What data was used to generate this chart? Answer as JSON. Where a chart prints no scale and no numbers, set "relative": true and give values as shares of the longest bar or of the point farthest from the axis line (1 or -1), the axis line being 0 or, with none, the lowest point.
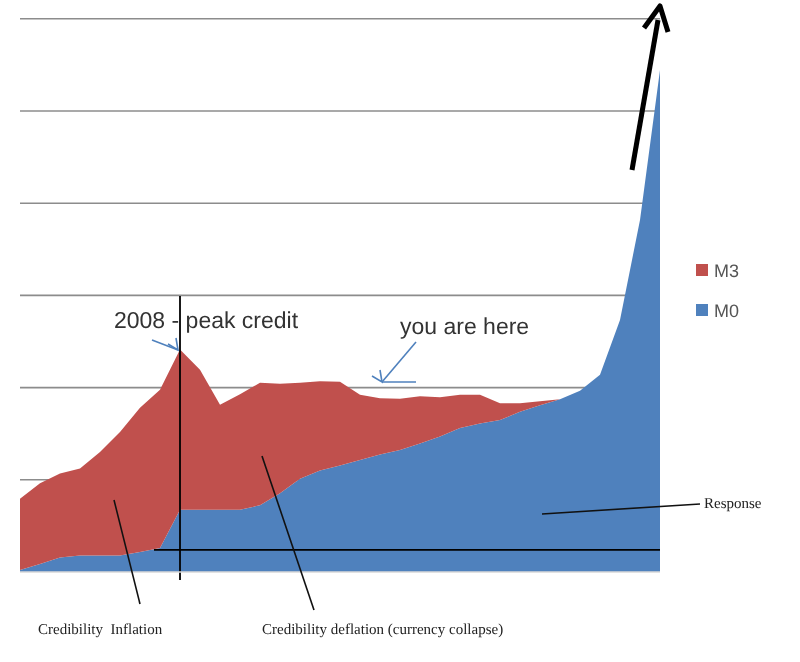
{
  "chart_data": {
    "type": "area",
    "stacked": true,
    "relative": true,
    "grid": "y",
    "legend": "right",
    "categories": [
      null,
      null,
      null,
      null,
      null,
      null,
      null,
      null,
      null,
      null,
      null,
      null,
      null,
      null,
      null,
      null,
      null,
      null,
      null,
      null,
      null,
      null,
      null,
      null,
      null,
      null,
      null,
      null,
      null,
      null,
      null,
      null,
      null
    ],
    "series": [
      {
        "name": "M0",
        "color": "#4f81bd",
        "values": [
          0.004,
          0.016,
          0.029,
          0.033,
          0.033,
          0.033,
          0.04,
          0.048,
          0.124,
          0.124,
          0.124,
          0.124,
          0.133,
          0.157,
          0.186,
          0.202,
          0.212,
          0.223,
          0.234,
          0.243,
          0.256,
          0.27,
          0.287,
          0.296,
          0.303,
          0.319,
          0.332,
          0.344,
          0.361,
          0.393,
          0.502,
          0.701,
          1
        ]
      },
      {
        "name": "M3",
        "color": "#c0504d",
        "values": [
          0.142,
          0.161,
          0.167,
          0.173,
          0.206,
          0.246,
          0.287,
          0.315,
          0.319,
          0.279,
          0.209,
          0.23,
          0.244,
          0.218,
          0.191,
          0.178,
          0.167,
          0.13,
          0.112,
          0.102,
          0.094,
          0.078,
          0.066,
          0.057,
          0.033,
          0.017,
          0.008,
          0,
          0,
          0,
          0,
          0,
          0
        ]
      }
    ],
    "ref_lines": [
      {
        "axis": "y",
        "value": 0.044,
        "color": "#000000"
      }
    ],
    "annotations": [
      "2008 - peak credit",
      "you are here",
      "Response",
      "Credibility  Inflation",
      "Credibility deflation (currency collapse)"
    ]
  }
}
